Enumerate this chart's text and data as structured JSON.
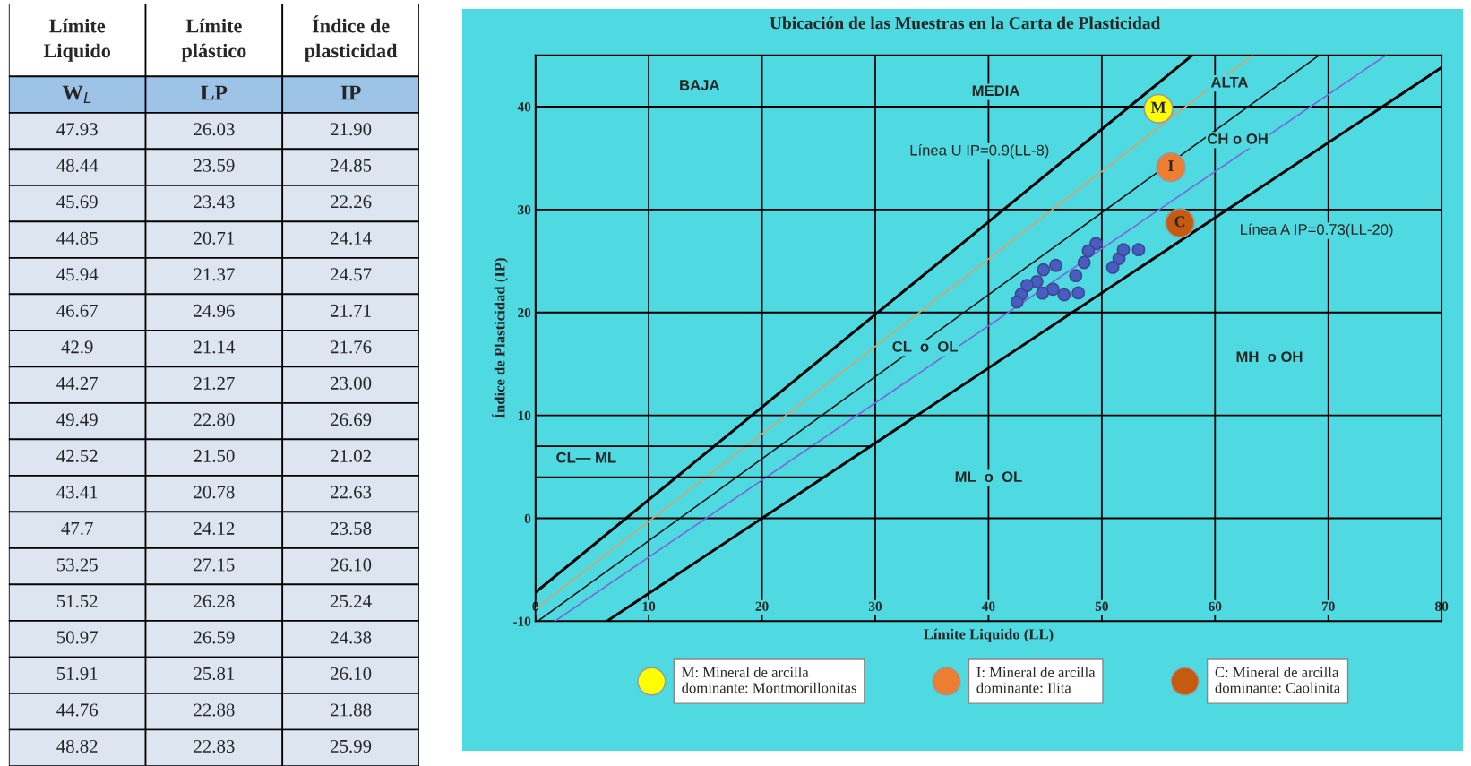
{
  "chart_data": [
    {
      "type": "other",
      "categories": [
        "Límite\nLiquido",
        "Límite\nplástico",
        "Índice de\nplasticidad"
      ],
      "annotations": [
        "W$_{L}$",
        "LP",
        "IP",
        "47.93",
        "26.03",
        "21.90",
        "48.44",
        "23.59",
        "24.85",
        "45.69",
        "23.43",
        "22.26",
        "44.85",
        "20.71",
        "24.14",
        "45.94",
        "21.37",
        "24.57",
        "46.67",
        "24.96",
        "21.71",
        "42.9",
        "21.14",
        "21.76",
        "44.27",
        "21.27",
        "23.00",
        "49.49",
        "22.80",
        "26.69",
        "42.52",
        "21.50",
        "21.02",
        "43.41",
        "20.78",
        "22.63",
        "47.7",
        "24.12",
        "23.58",
        "53.25",
        "27.15",
        "26.10",
        "51.52",
        "26.28",
        "25.24",
        "50.97",
        "26.59",
        "24.38",
        "51.91",
        "25.81",
        "26.10",
        "44.76",
        "22.88",
        "21.88",
        "48.82",
        "22.83",
        "25.99"
      ]
    },
    {
      "type": "scatter",
      "title": "Ubicación de las Muestras en la Carta de Plasticidad",
      "xlabel": "Límite Liquido (LL)",
      "ylabel": "Índice de Plasticidad (IP)",
      "xlim": [
        0,
        80
      ],
      "xticks": [
        0,
        10,
        20,
        30,
        40,
        50,
        60,
        70,
        80
      ],
      "ylim": [
        -10,
        45
      ],
      "yticks": [
        -10,
        0,
        10,
        20,
        30,
        40
      ],
      "grid": true,
      "legend": "bottom",
      "series": [
        {
          "type": "line",
          "marker": "none",
          "color": "#000000",
          "x": [
            0,
            58
          ],
          "values": [
            -7.2,
            45
          ]
        },
        {
          "type": "line",
          "marker": "none",
          "color": "#000000",
          "x": [
            6.3,
            80
          ],
          "values": [
            -10,
            43.8
          ]
        },
        {
          "type": "line",
          "color": "#d4a56a",
          "x": [
            0,
            63.3
          ],
          "values": [
            -8.8,
            45
          ]
        },
        {
          "type": "line",
          "marker": "none",
          "color": "#1a1a1a",
          "x": [
            0.2,
            69.2
          ],
          "values": [
            -10,
            45
          ]
        },
        {
          "type": "line",
          "marker": "none",
          "color": "#7b68d8",
          "x": [
            1.7,
            75.1
          ],
          "values": [
            -10,
            45
          ]
        },
        {
          "type": "line",
          "marker": "none",
          "color": "#000000",
          "x": [
            0,
            29.6
          ],
          "values": [
            7,
            7
          ]
        },
        {
          "type": "line",
          "marker": "none",
          "color": "#000000",
          "x": [
            0,
            25.5
          ],
          "values": [
            4,
            4
          ]
        },
        {
          "type": "scatter",
          "marker": "circle",
          "color": "#4a5cc4",
          "x": [
            47.93,
            48.44,
            45.69,
            44.85,
            45.94,
            46.67,
            42.9,
            44.27,
            49.49,
            42.52,
            43.41,
            47.7,
            53.25,
            51.52,
            50.97,
            51.91,
            44.76,
            48.82
          ],
          "values": [
            21.9,
            24.85,
            22.26,
            24.14,
            24.57,
            21.71,
            21.76,
            23.0,
            26.69,
            21.02,
            22.63,
            23.58,
            26.1,
            25.24,
            24.38,
            26.1,
            21.88,
            25.99
          ]
        },
        {
          "type": "scatter",
          "marker": "circle",
          "name": "M: Mineral de arcilla\ndominante: Montmorillonitas",
          "color": "#ffff00",
          "x": [
            55
          ],
          "values": [
            39.8
          ],
          "value_labels": [
            "M"
          ]
        },
        {
          "type": "scatter",
          "marker": "circle",
          "name": "I: Mineral de arcilla\ndominante: Ilita",
          "color": "#ed7d31",
          "x": [
            56.1
          ],
          "values": [
            34.1
          ],
          "value_labels": [
            "I"
          ]
        },
        {
          "type": "scatter",
          "marker": "circle",
          "name": "C: Mineral de arcilla\ndominante: Caolinita",
          "color": "#c55a11",
          "x": [
            56.9
          ],
          "values": [
            28.7
          ],
          "value_labels": [
            "C"
          ]
        }
      ],
      "annotations": [
        "BAJA",
        "MEDIA",
        "ALTA",
        "CH o OH",
        "Línea U IP=0.9(LL-8)",
        "Línea A IP=0.73(LL-20)",
        "CL  o  OL",
        "MH  o OH",
        "ML  o  OL",
        "CL— ML"
      ]
    }
  ]
}
